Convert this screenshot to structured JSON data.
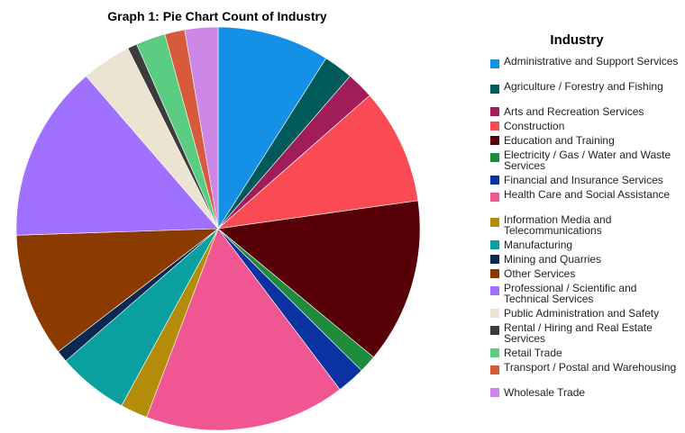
{
  "chart_data": {
    "type": "pie",
    "title": "Graph 1: Pie Chart Count of Industry",
    "legend_title": "Industry",
    "legend_position": "right",
    "start_angle_deg": 0,
    "direction": "clockwise",
    "categories": [
      {
        "label": "Administrative and Support Services",
        "value": 9.5,
        "color": "#1490e6"
      },
      {
        "label": "Agriculture / Forestry and Fishing",
        "value": 2.5,
        "color": "#005a5a"
      },
      {
        "label": "Arts and Recreation Services",
        "value": 2.3,
        "color": "#a01d5a"
      },
      {
        "label": "Construction",
        "value": 9.8,
        "color": "#fa4b55"
      },
      {
        "label": "Education and Training",
        "value": 14.0,
        "color": "#580008"
      },
      {
        "label": "Electricity / Gas / Water and Waste Services",
        "value": 1.5,
        "color": "#1e8c3c"
      },
      {
        "label": "Financial and Insurance Services",
        "value": 2.4,
        "color": "#0a32a0"
      },
      {
        "label": "Health Care and Social Assistance",
        "value": 17.0,
        "color": "#f05691"
      },
      {
        "label": "Information Media and Telecommunications",
        "value": 2.3,
        "color": "#b48c0a"
      },
      {
        "label": "Manufacturing",
        "value": 6.0,
        "color": "#0aa0a0"
      },
      {
        "label": "Mining and Quarries",
        "value": 1.0,
        "color": "#0a2850"
      },
      {
        "label": "Other Services",
        "value": 10.5,
        "color": "#8b3a00"
      },
      {
        "label": "Professional / Scientific and Technical Services",
        "value": 15.0,
        "color": "#a070ff"
      },
      {
        "label": "Public Administration and Safety",
        "value": 4.2,
        "color": "#ece4d2"
      },
      {
        "label": "Rental / Hiring and Real Estate Services",
        "value": 0.8,
        "color": "#3c3c3c"
      },
      {
        "label": "Retail Trade",
        "value": 2.5,
        "color": "#5acd82"
      },
      {
        "label": "Transport / Postal and Warehousing",
        "value": 1.7,
        "color": "#d75a3c"
      },
      {
        "label": "Wholesale Trade",
        "value": 2.8,
        "color": "#cd87e6"
      }
    ]
  }
}
